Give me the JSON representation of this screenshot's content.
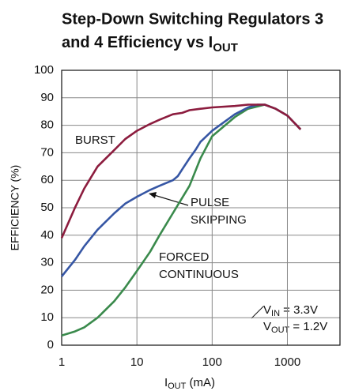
{
  "chart_data": {
    "type": "line",
    "title_lines": [
      "Step-Down Switching Regulators 3",
      "and 4 Efficiency vs I"
    ],
    "title_sub": "OUT",
    "xlabel": {
      "main": "I",
      "sub": "OUT",
      "rest": " (mA)"
    },
    "ylabel": "EFFICIENCY (%)",
    "xscale": "log",
    "xlim": [
      1,
      5000
    ],
    "xticks": [
      1,
      10,
      100,
      1000
    ],
    "ylim": [
      0,
      100
    ],
    "yticks": [
      0,
      10,
      20,
      30,
      40,
      50,
      60,
      70,
      80,
      90,
      100
    ],
    "grid": true,
    "series": [
      {
        "name": "BURST",
        "color": "#8c1c3e",
        "x": [
          1,
          1.5,
          2,
          3,
          5,
          7,
          10,
          15,
          20,
          30,
          40,
          50,
          70,
          100,
          200,
          300,
          500,
          700,
          1000,
          1500
        ],
        "values": [
          39,
          50,
          57,
          65,
          71,
          75,
          78,
          80.5,
          82,
          84,
          84.5,
          85.5,
          86,
          86.5,
          87,
          87.5,
          87.5,
          86,
          83.5,
          78.5
        ]
      },
      {
        "name": "PULSE SKIPPING",
        "color": "#3656a4",
        "x": [
          1,
          1.5,
          2,
          3,
          5,
          7,
          10,
          15,
          20,
          30,
          35,
          40,
          50,
          60,
          70,
          100,
          200,
          300,
          400,
          500,
          700,
          1000,
          1500
        ],
        "values": [
          25,
          31,
          36,
          42,
          48,
          51.5,
          54,
          56.5,
          58,
          60,
          61.5,
          64,
          68,
          71,
          74,
          78,
          84,
          86.5,
          87.5,
          87.5,
          86,
          83.5,
          78.5
        ]
      },
      {
        "name": "FORCED CONTINUOUS",
        "color": "#3a8a4c",
        "x": [
          1,
          1.5,
          2,
          3,
          5,
          7,
          10,
          15,
          20,
          30,
          50,
          70,
          100,
          200,
          300,
          500,
          700,
          1000,
          1500
        ],
        "values": [
          3.5,
          5,
          6.5,
          10,
          16,
          21,
          27,
          34,
          40,
          48,
          58,
          68,
          76,
          83,
          86,
          87.5,
          86,
          83.5,
          78.5
        ]
      }
    ],
    "annotations": [
      "BURST",
      "PULSE",
      "SKIPPING",
      "FORCED",
      "CONTINUOUS"
    ],
    "vin": {
      "main": "V",
      "sub": "IN",
      "rest": " = 3.3V"
    },
    "vout": {
      "main": "V",
      "sub": "OUT",
      "rest": " = 1.2V"
    }
  }
}
